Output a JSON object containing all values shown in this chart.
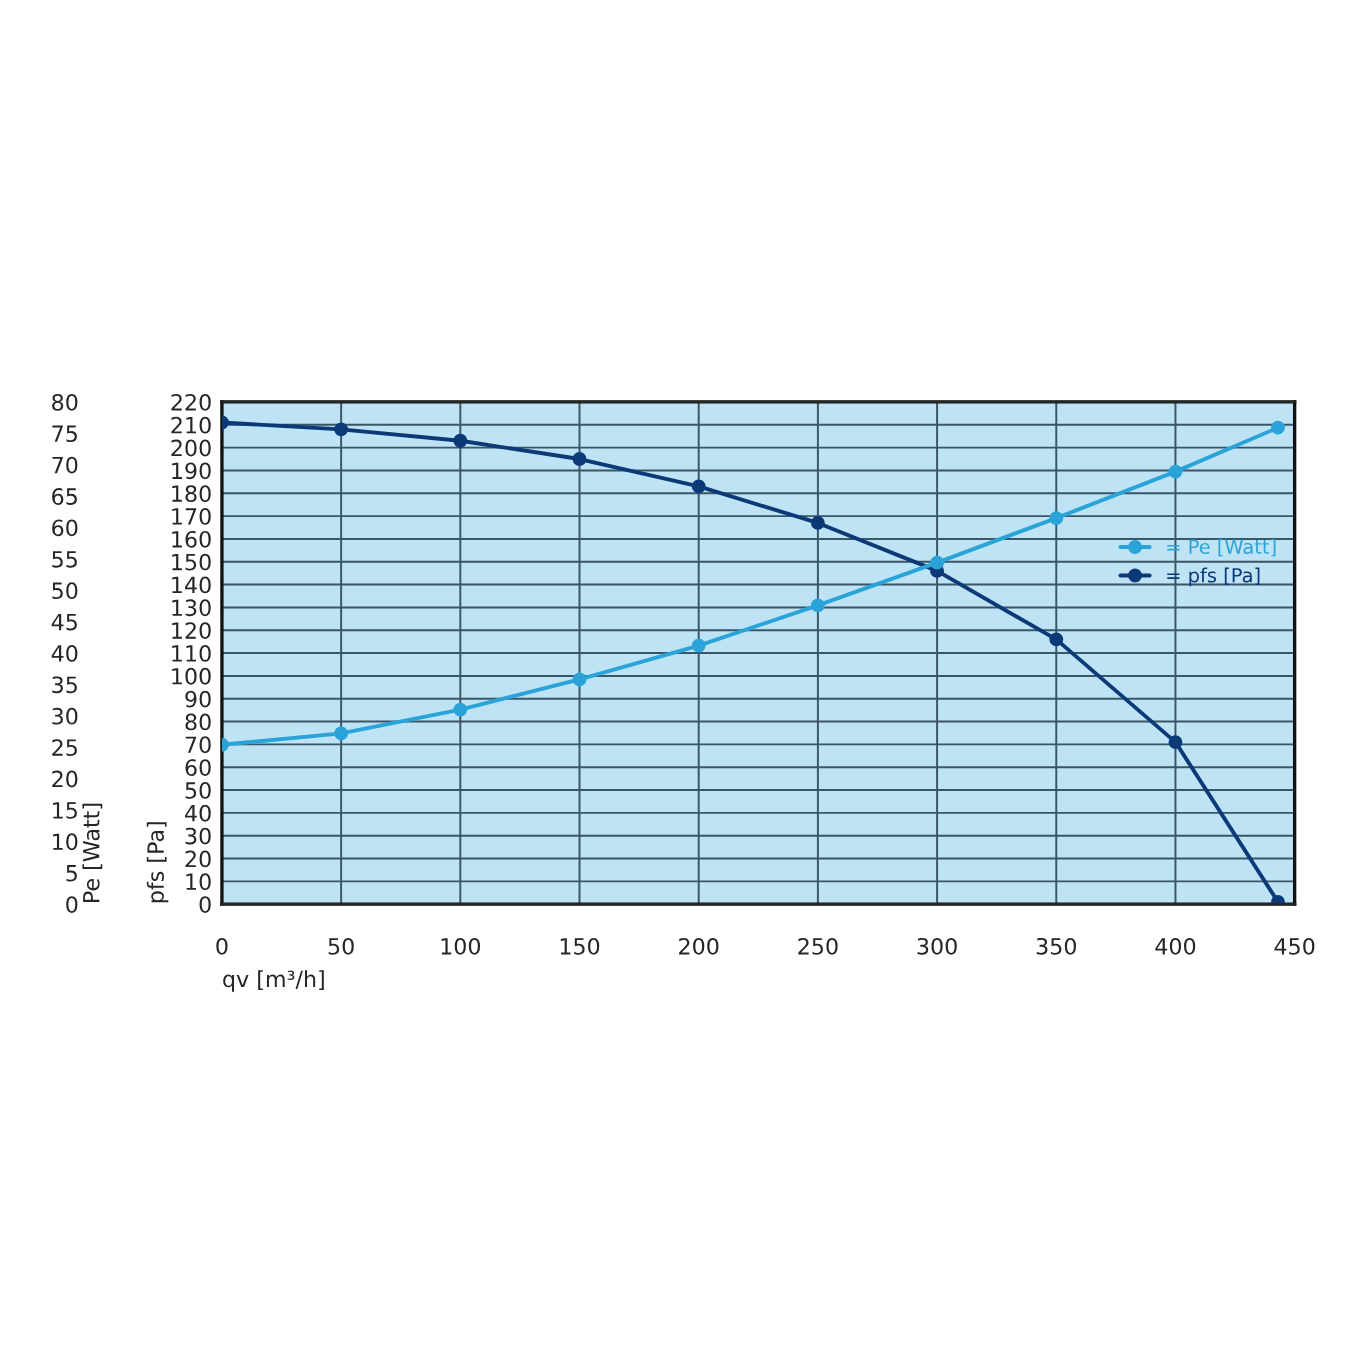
{
  "chart_data": {
    "type": "line",
    "xlabel": "qv [m³/h]",
    "ylabel": "pfs [Pa]",
    "y2label": "Pe [Watt]",
    "x": [
      0,
      50,
      100,
      150,
      200,
      250,
      300,
      350,
      400,
      443
    ],
    "series": [
      {
        "name": "= Pe [Watt]",
        "color": "#2aa3d8",
        "axis": "y2",
        "values": [
          25.4,
          27.2,
          31.0,
          35.8,
          41.2,
          47.6,
          54.4,
          61.5,
          68.9,
          75.9
        ]
      },
      {
        "name": "= pfs [Pa]",
        "color": "#0c3a78",
        "values": [
          211,
          208,
          203,
          195,
          183,
          167,
          146,
          116,
          71,
          1
        ]
      }
    ],
    "xlim": [
      0,
      450
    ],
    "xticks": [
      0,
      50,
      100,
      150,
      200,
      250,
      300,
      350,
      400,
      450
    ],
    "ylim": [
      0,
      220
    ],
    "yticks": [
      0,
      10,
      20,
      30,
      40,
      50,
      60,
      70,
      80,
      90,
      100,
      110,
      120,
      130,
      140,
      150,
      160,
      170,
      180,
      190,
      200,
      210,
      220
    ],
    "y2lim": [
      0,
      80
    ],
    "y2ticks": [
      0,
      5,
      10,
      15,
      20,
      25,
      30,
      35,
      40,
      45,
      50,
      55,
      60,
      65,
      70,
      75,
      80
    ],
    "grid": true,
    "legend": "right",
    "marker": "circle",
    "line_style": "solid"
  }
}
